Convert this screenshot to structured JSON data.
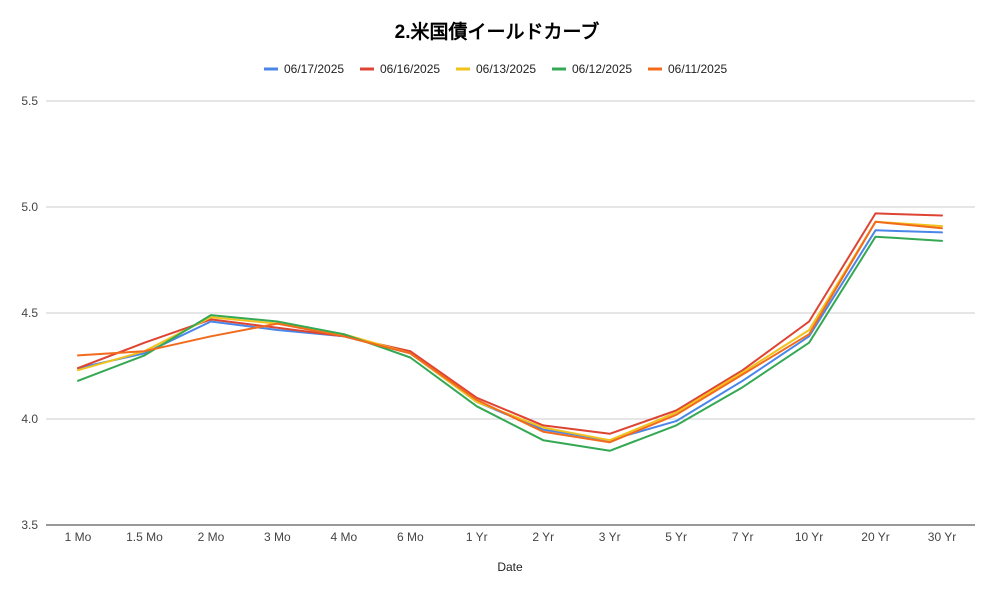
{
  "chart_data": {
    "type": "line",
    "title": "2.米国債イールドカーブ",
    "xlabel": "Date",
    "ylabel": "",
    "categories": [
      "1 Mo",
      "1.5 Mo",
      "2 Mo",
      "3 Mo",
      "4 Mo",
      "6 Mo",
      "1 Yr",
      "2 Yr",
      "3 Yr",
      "5 Yr",
      "7 Yr",
      "10 Yr",
      "20 Yr",
      "30 Yr"
    ],
    "ylim": [
      3.5,
      5.5
    ],
    "yticks": [
      "3.5",
      "4.0",
      "4.5",
      "5.0",
      "5.5"
    ],
    "grid": true,
    "legend_position": "top",
    "series": [
      {
        "name": "06/17/2025",
        "color": "#4a86e8",
        "values": [
          4.24,
          4.31,
          4.46,
          4.42,
          4.39,
          4.31,
          4.08,
          3.95,
          3.9,
          3.99,
          4.18,
          4.39,
          4.89,
          4.88
        ]
      },
      {
        "name": "06/16/2025",
        "color": "#dd4433",
        "values": [
          4.24,
          4.36,
          4.47,
          4.43,
          4.39,
          4.32,
          4.1,
          3.97,
          3.93,
          4.04,
          4.23,
          4.46,
          4.97,
          4.96
        ]
      },
      {
        "name": "06/13/2025",
        "color": "#f1c21b",
        "values": [
          4.23,
          4.32,
          4.48,
          4.45,
          4.4,
          4.31,
          4.08,
          3.96,
          3.9,
          4.03,
          4.22,
          4.42,
          4.93,
          4.91
        ]
      },
      {
        "name": "06/12/2025",
        "color": "#34a853",
        "values": [
          4.18,
          4.3,
          4.49,
          4.46,
          4.4,
          4.29,
          4.06,
          3.9,
          3.85,
          3.97,
          4.15,
          4.36,
          4.86,
          4.84
        ]
      },
      {
        "name": "06/11/2025",
        "color": "#f26b1d",
        "values": [
          4.3,
          4.32,
          4.39,
          4.45,
          4.39,
          4.31,
          4.09,
          3.94,
          3.89,
          4.02,
          4.21,
          4.4,
          4.93,
          4.9
        ]
      }
    ]
  }
}
